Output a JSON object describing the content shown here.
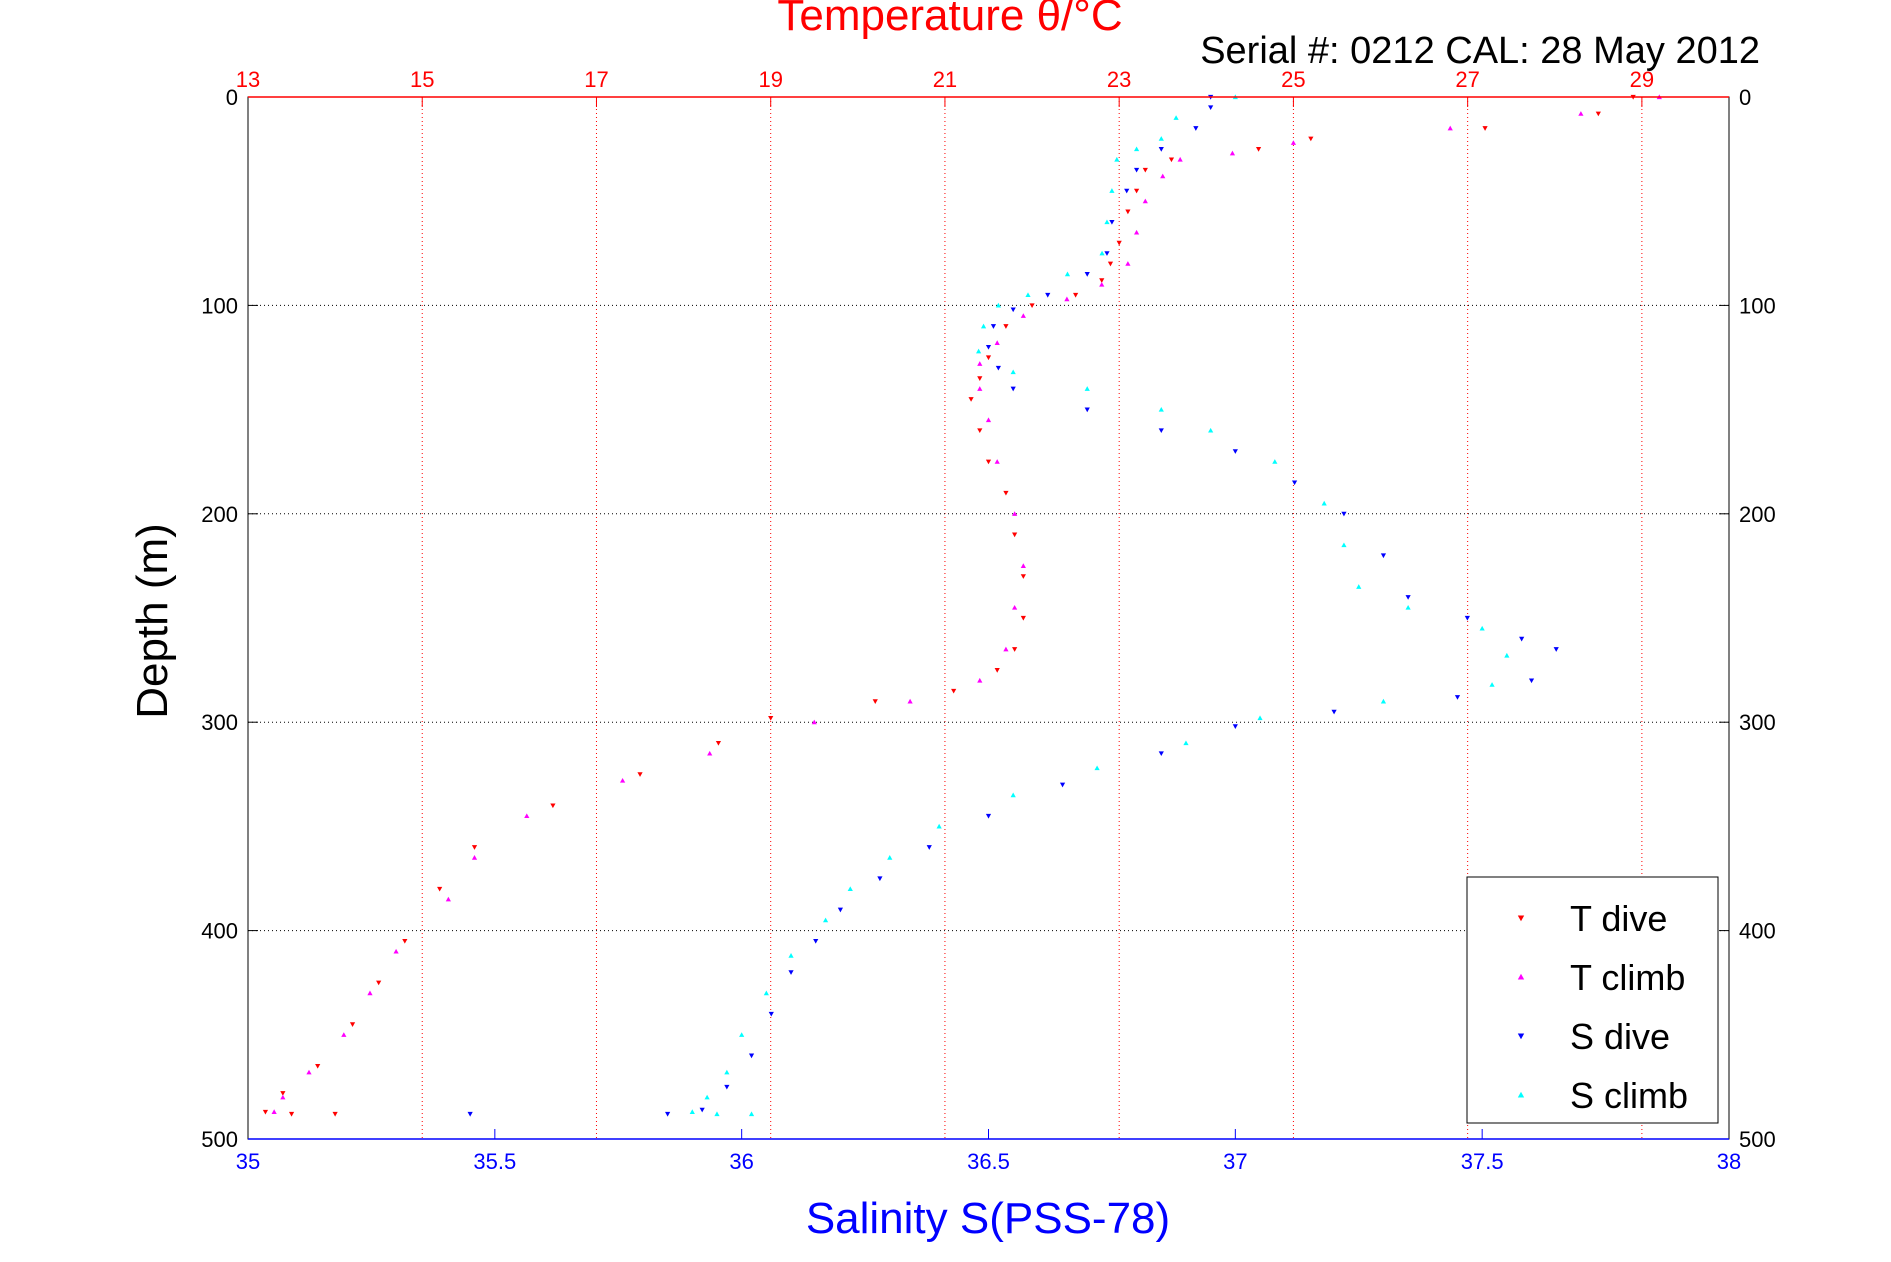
{
  "chart_data": {
    "type": "scatter",
    "title": "Temperature θ/°C",
    "subtitle": "Serial #: 0212  CAL: 28 May 2012",
    "xlabel_bottom": "Salinity S(PSS-78)",
    "ylabel": "Depth (m)",
    "x_top_ticks": [
      "13",
      "15",
      "17",
      "19",
      "21",
      "23",
      "25",
      "27",
      "29"
    ],
    "x_top_range": [
      13,
      30
    ],
    "x_bottom_ticks": [
      "35",
      "35.5",
      "36",
      "36.5",
      "37",
      "37.5",
      "38"
    ],
    "x_bottom_range": [
      35,
      38
    ],
    "y_ticks": [
      "0",
      "100",
      "200",
      "300",
      "400",
      "500"
    ],
    "y_range": [
      0,
      500
    ],
    "y_reversed": true,
    "grid": "on",
    "legend_position": "bottom-right",
    "colors": {
      "t_dive": "#ff0000",
      "t_climb": "#ff00ff",
      "s_dive": "#0000ff",
      "s_climb": "#00ffff"
    },
    "series": [
      {
        "name": "T dive",
        "axis": "top",
        "marker": "triangle-down",
        "points": [
          [
            28.9,
            0
          ],
          [
            28.5,
            8
          ],
          [
            27.2,
            15
          ],
          [
            25.2,
            20
          ],
          [
            24.6,
            25
          ],
          [
            23.6,
            30
          ],
          [
            23.3,
            35
          ],
          [
            23.2,
            45
          ],
          [
            23.1,
            55
          ],
          [
            23.0,
            70
          ],
          [
            22.9,
            80
          ],
          [
            22.8,
            88
          ],
          [
            22.5,
            95
          ],
          [
            22.0,
            100
          ],
          [
            21.7,
            110
          ],
          [
            21.5,
            125
          ],
          [
            21.4,
            135
          ],
          [
            21.3,
            145
          ],
          [
            21.4,
            160
          ],
          [
            21.5,
            175
          ],
          [
            21.7,
            190
          ],
          [
            21.8,
            210
          ],
          [
            21.9,
            230
          ],
          [
            21.9,
            250
          ],
          [
            21.8,
            265
          ],
          [
            21.6,
            275
          ],
          [
            21.1,
            285
          ],
          [
            20.2,
            290
          ],
          [
            19.0,
            298
          ],
          [
            18.4,
            310
          ],
          [
            17.5,
            325
          ],
          [
            16.5,
            340
          ],
          [
            15.6,
            360
          ],
          [
            15.2,
            380
          ],
          [
            14.8,
            405
          ],
          [
            14.5,
            425
          ],
          [
            14.2,
            445
          ],
          [
            13.8,
            465
          ],
          [
            13.4,
            478
          ],
          [
            13.2,
            487
          ],
          [
            14.0,
            488
          ],
          [
            13.5,
            488
          ]
        ]
      },
      {
        "name": "T climb",
        "axis": "top",
        "marker": "triangle-up",
        "points": [
          [
            29.2,
            0
          ],
          [
            28.3,
            8
          ],
          [
            26.8,
            15
          ],
          [
            25.0,
            22
          ],
          [
            24.3,
            27
          ],
          [
            23.7,
            30
          ],
          [
            23.5,
            38
          ],
          [
            23.3,
            50
          ],
          [
            23.2,
            65
          ],
          [
            23.1,
            80
          ],
          [
            22.8,
            90
          ],
          [
            22.4,
            97
          ],
          [
            21.9,
            105
          ],
          [
            21.6,
            118
          ],
          [
            21.4,
            128
          ],
          [
            21.4,
            140
          ],
          [
            21.5,
            155
          ],
          [
            21.6,
            175
          ],
          [
            21.8,
            200
          ],
          [
            21.9,
            225
          ],
          [
            21.8,
            245
          ],
          [
            21.7,
            265
          ],
          [
            21.4,
            280
          ],
          [
            20.6,
            290
          ],
          [
            19.5,
            300
          ],
          [
            18.3,
            315
          ],
          [
            17.3,
            328
          ],
          [
            16.2,
            345
          ],
          [
            15.6,
            365
          ],
          [
            15.3,
            385
          ],
          [
            14.7,
            410
          ],
          [
            14.4,
            430
          ],
          [
            14.1,
            450
          ],
          [
            13.7,
            468
          ],
          [
            13.4,
            480
          ],
          [
            13.3,
            487
          ]
        ]
      },
      {
        "name": "S dive",
        "axis": "bottom",
        "marker": "triangle-down",
        "points": [
          [
            36.95,
            0
          ],
          [
            36.95,
            5
          ],
          [
            36.92,
            15
          ],
          [
            36.85,
            25
          ],
          [
            36.8,
            35
          ],
          [
            36.78,
            45
          ],
          [
            36.75,
            60
          ],
          [
            36.74,
            75
          ],
          [
            36.7,
            85
          ],
          [
            36.62,
            95
          ],
          [
            36.55,
            102
          ],
          [
            36.51,
            110
          ],
          [
            36.5,
            120
          ],
          [
            36.52,
            130
          ],
          [
            36.55,
            140
          ],
          [
            36.7,
            150
          ],
          [
            36.85,
            160
          ],
          [
            37.0,
            170
          ],
          [
            37.12,
            185
          ],
          [
            37.22,
            200
          ],
          [
            37.3,
            220
          ],
          [
            37.35,
            240
          ],
          [
            37.47,
            250
          ],
          [
            37.58,
            260
          ],
          [
            37.65,
            265
          ],
          [
            37.6,
            280
          ],
          [
            37.45,
            288
          ],
          [
            37.2,
            295
          ],
          [
            37.0,
            302
          ],
          [
            36.85,
            315
          ],
          [
            36.65,
            330
          ],
          [
            36.5,
            345
          ],
          [
            36.38,
            360
          ],
          [
            36.28,
            375
          ],
          [
            36.2,
            390
          ],
          [
            36.15,
            405
          ],
          [
            36.1,
            420
          ],
          [
            36.06,
            440
          ],
          [
            36.02,
            460
          ],
          [
            35.97,
            475
          ],
          [
            35.92,
            486
          ],
          [
            35.85,
            488
          ],
          [
            35.45,
            488
          ]
        ]
      },
      {
        "name": "S climb",
        "axis": "bottom",
        "marker": "triangle-up",
        "points": [
          [
            37.0,
            0
          ],
          [
            36.88,
            10
          ],
          [
            36.85,
            20
          ],
          [
            36.8,
            25
          ],
          [
            36.76,
            30
          ],
          [
            36.75,
            45
          ],
          [
            36.74,
            60
          ],
          [
            36.73,
            75
          ],
          [
            36.66,
            85
          ],
          [
            36.58,
            95
          ],
          [
            36.52,
            100
          ],
          [
            36.49,
            110
          ],
          [
            36.48,
            122
          ],
          [
            36.55,
            132
          ],
          [
            36.7,
            140
          ],
          [
            36.85,
            150
          ],
          [
            36.95,
            160
          ],
          [
            37.08,
            175
          ],
          [
            37.18,
            195
          ],
          [
            37.22,
            215
          ],
          [
            37.25,
            235
          ],
          [
            37.35,
            245
          ],
          [
            37.5,
            255
          ],
          [
            37.55,
            268
          ],
          [
            37.52,
            282
          ],
          [
            37.3,
            290
          ],
          [
            37.05,
            298
          ],
          [
            36.9,
            310
          ],
          [
            36.72,
            322
          ],
          [
            36.55,
            335
          ],
          [
            36.4,
            350
          ],
          [
            36.3,
            365
          ],
          [
            36.22,
            380
          ],
          [
            36.17,
            395
          ],
          [
            36.1,
            412
          ],
          [
            36.05,
            430
          ],
          [
            36.0,
            450
          ],
          [
            35.97,
            468
          ],
          [
            35.93,
            480
          ],
          [
            35.9,
            487
          ],
          [
            36.02,
            488
          ],
          [
            35.95,
            488
          ]
        ]
      }
    ]
  }
}
